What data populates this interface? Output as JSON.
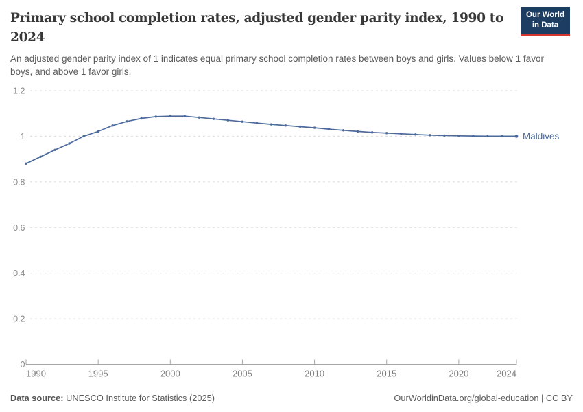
{
  "header": {
    "title": "Primary school completion rates, adjusted gender parity index, 1990 to 2024",
    "subtitle": "An adjusted gender parity index of 1 indicates equal primary school completion rates between boys and girls. Values below 1 favor boys, and above 1 favor girls.",
    "logo": {
      "line1": "Our World",
      "line2": "in Data",
      "bg_color": "#1d3d63",
      "accent_color": "#d8352e"
    }
  },
  "chart_data": {
    "type": "line",
    "title": "Primary school completion rates, adjusted gender parity index, 1990 to 2024",
    "xlabel": "",
    "ylabel": "",
    "xlim": [
      1990,
      2024
    ],
    "ylim": [
      0,
      1.2
    ],
    "grid": "horizontal-dashed",
    "legend_position": "end-of-line-label",
    "x_ticks": [
      1990,
      1995,
      2000,
      2005,
      2010,
      2015,
      2020,
      2024
    ],
    "y_ticks": [
      0,
      0.2,
      0.4,
      0.6,
      0.8,
      1,
      1.2
    ],
    "y_tick_labels": [
      "0",
      "0.2",
      "0.4",
      "0.6",
      "0.8",
      "1",
      "1.2"
    ],
    "series": [
      {
        "name": "Maldives",
        "color": "#4c6a9c",
        "x": [
          1990,
          1991,
          1992,
          1993,
          1994,
          1995,
          1996,
          1997,
          1998,
          1999,
          2000,
          2001,
          2002,
          2003,
          2004,
          2005,
          2006,
          2007,
          2008,
          2009,
          2010,
          2011,
          2012,
          2013,
          2014,
          2015,
          2016,
          2017,
          2018,
          2019,
          2020,
          2021,
          2022,
          2023,
          2024
        ],
        "values": [
          0.88,
          0.91,
          0.94,
          0.968,
          1.0,
          1.021,
          1.047,
          1.065,
          1.078,
          1.086,
          1.088,
          1.088,
          1.082,
          1.076,
          1.07,
          1.064,
          1.058,
          1.052,
          1.047,
          1.042,
          1.037,
          1.031,
          1.026,
          1.021,
          1.017,
          1.014,
          1.011,
          1.008,
          1.005,
          1.003,
          1.002,
          1.001,
          1.0,
          1.0,
          1.0
        ]
      }
    ]
  },
  "footer": {
    "source_label": "Data source:",
    "source_text": " UNESCO Institute for Statistics (2025)",
    "attribution": "OurWorldinData.org/global-education | CC BY"
  }
}
